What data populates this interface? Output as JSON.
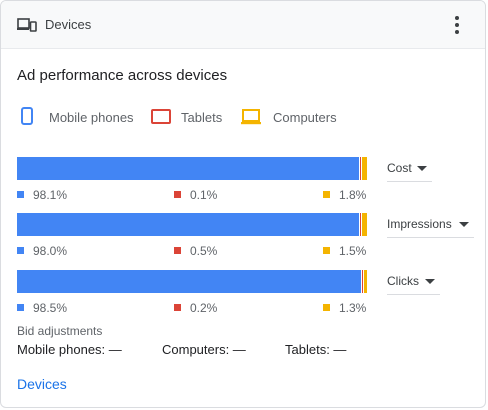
{
  "header": {
    "title": "Devices"
  },
  "title": "Ad performance across devices",
  "legend": [
    {
      "label": "Mobile phones",
      "color": "#4285f4",
      "icon": "phone-icon"
    },
    {
      "label": "Tablets",
      "color": "#db4437",
      "icon": "tablet-icon"
    },
    {
      "label": "Computers",
      "color": "#f4b400",
      "icon": "computer-icon"
    }
  ],
  "metrics": [
    {
      "label": "Cost",
      "mobile": 98.1,
      "tablet": 0.1,
      "computer": 1.8,
      "mobile_text": "98.1%",
      "tablet_text": "0.1%",
      "computer_text": "1.8%"
    },
    {
      "label": "Impressions",
      "mobile": 98.0,
      "tablet": 0.5,
      "computer": 1.5,
      "mobile_text": "98.0%",
      "tablet_text": "0.5%",
      "computer_text": "1.5%"
    },
    {
      "label": "Clicks",
      "mobile": 98.5,
      "tablet": 0.2,
      "computer": 1.3,
      "mobile_text": "98.5%",
      "tablet_text": "0.2%",
      "computer_text": "1.3%"
    }
  ],
  "bid": {
    "label": "Bid adjustments",
    "mobile": "Mobile phones: —",
    "computers": "Computers: —",
    "tablets": "Tablets: —"
  },
  "link": "Devices"
}
